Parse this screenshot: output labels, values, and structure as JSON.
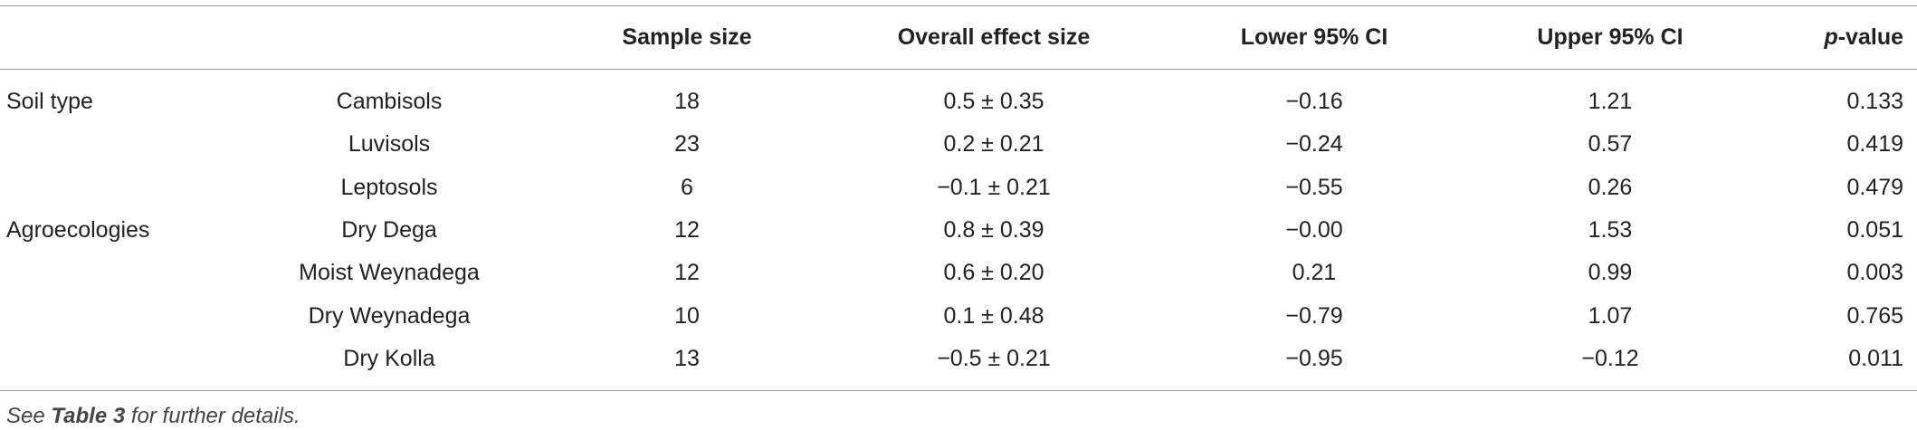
{
  "table": {
    "header": [
      "Sample size",
      "Overall effect size",
      "Lower 95% CI",
      "Upper 95% CI",
      {
        "italic": "p",
        "rest": "-value"
      }
    ],
    "groups": [
      {
        "label": "Soil type",
        "rows": [
          [
            "Cambisols",
            "18",
            "0.5 ± 0.35",
            "−0.16",
            "1.21",
            "0.133"
          ],
          [
            "Luvisols",
            "23",
            "0.2 ± 0.21",
            "−0.24",
            "0.57",
            "0.419"
          ],
          [
            "Leptosols",
            "6",
            "−0.1 ± 0.21",
            "−0.55",
            "0.26",
            "0.479"
          ]
        ]
      },
      {
        "label": "Agroecologies",
        "rows": [
          [
            "Dry Dega",
            "12",
            "0.8 ± 0.39",
            "−0.00",
            "1.53",
            "0.051"
          ],
          [
            "Moist Weynadega",
            "12",
            "0.6 ± 0.20",
            "0.21",
            "0.99",
            "0.003"
          ],
          [
            "Dry Weynadega",
            "10",
            "0.1 ± 0.48",
            "−0.79",
            "1.07",
            "0.765"
          ],
          [
            "Dry Kolla",
            "13",
            "−0.5 ± 0.21",
            "−0.95",
            "−0.12",
            "0.011"
          ]
        ]
      }
    ],
    "footnote": {
      "before": "See ",
      "ref": "Table 3",
      "after": " for further details."
    }
  }
}
